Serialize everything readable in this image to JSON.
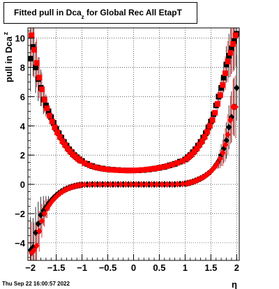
{
  "title": {
    "prefix": "Fitted pull in Dca",
    "subscript": "z",
    "suffix": " for Global Rec All EtapT"
  },
  "footer": {
    "date": "Thu Sep 22 16:00:57 2022"
  },
  "chart_data": {
    "type": "scatter",
    "xlabel": "η",
    "ylabel": "pull in Dca",
    "ylabel_subscript": "z",
    "xlim": [
      -2.05,
      2.05
    ],
    "ylim": [
      -5.2,
      10.7
    ],
    "xticks": [
      -2,
      -1.5,
      -1,
      -0.5,
      0,
      0.5,
      1,
      1.5,
      2
    ],
    "xtick_labels": [
      "−2",
      "−1.5",
      "−1",
      "−0.5",
      "0",
      "0.5",
      "1",
      "1.5",
      "2"
    ],
    "yticks": [
      -4,
      -2,
      0,
      2,
      4,
      6,
      8,
      10
    ],
    "ytick_labels": [
      "−4",
      "−2",
      "0",
      "2",
      "4",
      "6",
      "8",
      "10"
    ],
    "grid": true,
    "colors": {
      "series_black": "#000000",
      "series_red": "#ff0000"
    },
    "series": [
      {
        "color": "black",
        "marker": "square",
        "x": [
          -2.0,
          -1.95,
          -1.9,
          -1.85,
          -1.8,
          -1.75,
          -1.7,
          -1.65,
          -1.6,
          -1.55,
          -1.5,
          -1.45,
          -1.4,
          -1.35,
          -1.3,
          -1.25,
          -1.2,
          -1.15,
          -1.1,
          -1.05,
          -1.0,
          -0.9,
          -0.8,
          -0.7,
          -0.6,
          -0.5,
          -0.4,
          -0.3,
          -0.2,
          -0.1,
          0.0,
          0.1,
          0.2,
          0.3,
          0.4,
          0.5,
          0.6,
          0.7,
          0.8,
          0.9,
          1.0,
          1.05,
          1.1,
          1.15,
          1.2,
          1.25,
          1.3,
          1.35,
          1.4,
          1.45,
          1.5,
          1.55,
          1.6,
          1.65,
          1.7,
          1.75,
          1.8,
          1.85,
          1.9,
          1.95,
          2.0
        ],
        "y": [
          8.6,
          9.4,
          8.0,
          7.2,
          6.6,
          5.8,
          5.4,
          5.0,
          4.6,
          4.2,
          3.8,
          3.5,
          3.2,
          2.9,
          2.65,
          2.4,
          2.2,
          2.0,
          1.85,
          1.7,
          1.6,
          1.4,
          1.25,
          1.15,
          1.08,
          1.03,
          1.0,
          0.98,
          0.96,
          0.95,
          0.95,
          0.96,
          0.98,
          1.02,
          1.07,
          1.13,
          1.2,
          1.3,
          1.4,
          1.55,
          1.7,
          1.85,
          2.0,
          2.2,
          2.4,
          2.65,
          2.9,
          3.2,
          3.5,
          3.9,
          4.3,
          4.8,
          5.4,
          6.0,
          6.6,
          7.3,
          8.2,
          8.8,
          9.3,
          9.8,
          10.3
        ]
      },
      {
        "color": "red",
        "marker": "square",
        "x": [
          -1.98,
          -1.93,
          -1.88,
          -1.83,
          -1.78,
          -1.73,
          -1.68,
          -1.63,
          -1.58,
          -1.53,
          -1.48,
          -1.43,
          -1.38,
          -1.33,
          -1.28,
          -1.23,
          -1.18,
          -1.13,
          -1.08,
          -1.03,
          -0.95,
          -0.85,
          -0.75,
          -0.65,
          -0.55,
          -0.45,
          -0.35,
          -0.25,
          -0.15,
          -0.05,
          0.05,
          0.15,
          0.25,
          0.35,
          0.45,
          0.55,
          0.65,
          0.75,
          0.85,
          0.95,
          1.03,
          1.08,
          1.13,
          1.18,
          1.23,
          1.28,
          1.33,
          1.38,
          1.43,
          1.48,
          1.53,
          1.58,
          1.63,
          1.68,
          1.73,
          1.78,
          1.83,
          1.88,
          1.93,
          1.98
        ],
        "y": [
          10.2,
          9.2,
          8.3,
          7.3,
          6.5,
          5.8,
          5.2,
          4.7,
          4.3,
          3.9,
          3.55,
          3.25,
          2.95,
          2.7,
          2.45,
          2.25,
          2.05,
          1.9,
          1.75,
          1.62,
          1.45,
          1.3,
          1.18,
          1.1,
          1.04,
          1.0,
          0.98,
          0.96,
          0.95,
          0.95,
          0.96,
          0.98,
          1.01,
          1.05,
          1.1,
          1.17,
          1.25,
          1.35,
          1.47,
          1.6,
          1.75,
          1.9,
          2.05,
          2.25,
          2.45,
          2.7,
          2.95,
          3.25,
          3.6,
          4.0,
          4.4,
          4.9,
          5.5,
          6.1,
          6.8,
          7.6,
          8.4,
          9.0,
          9.6,
          10.2
        ]
      },
      {
        "color": "black",
        "marker": "diamond",
        "x": [
          -2.0,
          -1.95,
          -1.9,
          -1.85,
          -1.8,
          -1.75,
          -1.7,
          -1.65,
          -1.6,
          -1.55,
          -1.5,
          -1.45,
          -1.4,
          -1.35,
          -1.3,
          -1.25,
          -1.2,
          -1.15,
          -1.1,
          -1.05,
          -1.0,
          -0.9,
          -0.8,
          -0.7,
          -0.6,
          -0.5,
          -0.4,
          -0.3,
          -0.2,
          -0.1,
          0.0,
          0.1,
          0.2,
          0.3,
          0.4,
          0.5,
          0.6,
          0.7,
          0.8,
          0.9,
          1.0,
          1.05,
          1.1,
          1.15,
          1.2,
          1.25,
          1.3,
          1.35,
          1.4,
          1.45,
          1.5,
          1.55,
          1.6,
          1.65,
          1.7,
          1.75,
          1.8,
          1.85,
          1.9,
          1.95,
          2.0
        ],
        "y": [
          -4.5,
          -4.3,
          -3.3,
          -2.7,
          -2.1,
          -1.8,
          -1.55,
          -1.3,
          -1.1,
          -0.9,
          -0.75,
          -0.6,
          -0.48,
          -0.38,
          -0.3,
          -0.23,
          -0.17,
          -0.12,
          -0.08,
          -0.05,
          -0.03,
          -0.01,
          0.0,
          0.0,
          0.0,
          0.0,
          0.0,
          0.0,
          0.0,
          0.0,
          0.0,
          0.0,
          0.0,
          0.0,
          0.0,
          0.0,
          0.0,
          0.0,
          0.0,
          0.02,
          0.05,
          0.08,
          0.12,
          0.18,
          0.25,
          0.32,
          0.4,
          0.5,
          0.62,
          0.75,
          0.9,
          1.1,
          1.35,
          1.6,
          2.0,
          2.45,
          3.0,
          3.9,
          4.6,
          5.3,
          6.6
        ]
      },
      {
        "color": "red",
        "marker": "diamond",
        "x": [
          -1.98,
          -1.93,
          -1.88,
          -1.83,
          -1.78,
          -1.73,
          -1.68,
          -1.63,
          -1.58,
          -1.53,
          -1.48,
          -1.43,
          -1.38,
          -1.33,
          -1.28,
          -1.23,
          -1.18,
          -1.13,
          -1.08,
          -1.03,
          -0.95,
          -0.85,
          -0.75,
          -0.65,
          -0.55,
          -0.45,
          -0.35,
          -0.25,
          -0.15,
          -0.05,
          0.05,
          0.15,
          0.25,
          0.35,
          0.45,
          0.55,
          0.65,
          0.75,
          0.85,
          0.95,
          1.03,
          1.08,
          1.13,
          1.18,
          1.23,
          1.28,
          1.33,
          1.38,
          1.43,
          1.48,
          1.53,
          1.58,
          1.63,
          1.68,
          1.73,
          1.78,
          1.83,
          1.88,
          1.93,
          1.98
        ],
        "y": [
          -4.7,
          -4.5,
          -4.2,
          -3.2,
          -2.5,
          -2.0,
          -1.65,
          -1.4,
          -1.15,
          -0.95,
          -0.78,
          -0.62,
          -0.5,
          -0.39,
          -0.3,
          -0.23,
          -0.17,
          -0.12,
          -0.08,
          -0.05,
          -0.02,
          -0.01,
          0.0,
          0.0,
          0.0,
          0.0,
          0.0,
          0.0,
          0.0,
          0.0,
          0.0,
          0.0,
          0.0,
          0.0,
          0.0,
          0.0,
          0.0,
          0.0,
          0.01,
          0.03,
          0.06,
          0.1,
          0.15,
          0.21,
          0.28,
          0.36,
          0.45,
          0.55,
          0.68,
          0.82,
          1.0,
          1.2,
          1.45,
          1.75,
          2.15,
          2.7,
          3.4,
          4.4,
          5.3,
          5.3
        ]
      }
    ]
  }
}
